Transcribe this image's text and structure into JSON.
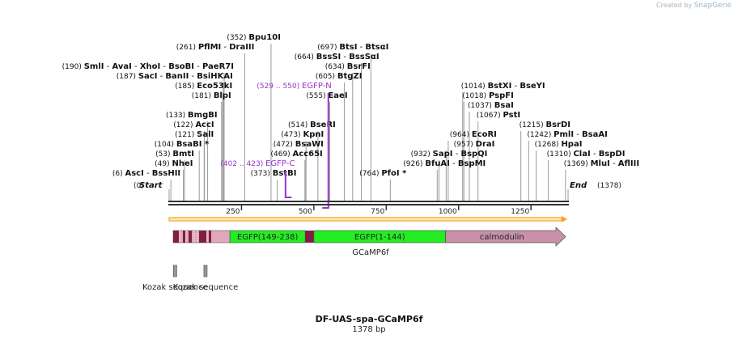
{
  "credit": {
    "prefix": "Created by",
    "brand": "SnapGene"
  },
  "title": "DF-UAS-spa-GCaMP6f",
  "length_label": "1378 bp",
  "total_bp": 1378,
  "ruler_ticks": [
    "250",
    "500",
    "750",
    "1000",
    "1250"
  ],
  "ruler_positions": [
    250,
    500,
    750,
    1000,
    1250
  ],
  "end_labels": {
    "start": "Start",
    "start_pos": "(0)",
    "end": "End",
    "end_pos": "(1378)"
  },
  "sites": [
    {
      "row": 0,
      "pos": 6,
      "posText": "(6)",
      "names": [
        "AscI",
        "BssHII"
      ]
    },
    {
      "row": 1,
      "pos": 49,
      "posText": "(49)",
      "names": [
        "NheI"
      ]
    },
    {
      "row": 2,
      "pos": 53,
      "posText": "(53)",
      "names": [
        "BmtI"
      ]
    },
    {
      "row": 3,
      "pos": 104,
      "posText": "(104)",
      "names": [
        "BsaBI *"
      ]
    },
    {
      "row": 4,
      "pos": 121,
      "posText": "(121)",
      "names": [
        "SalI"
      ]
    },
    {
      "row": 5,
      "pos": 122,
      "posText": "(122)",
      "names": [
        "AccI"
      ]
    },
    {
      "row": 6,
      "pos": 133,
      "posText": "(133)",
      "names": [
        "BmgBI"
      ]
    },
    {
      "row": 8,
      "pos": 181,
      "posText": "(181)",
      "names": [
        "BlpI"
      ]
    },
    {
      "row": 9,
      "pos": 185,
      "posText": "(185)",
      "names": [
        "Eco53kI"
      ]
    },
    {
      "row": 10,
      "pos": 187,
      "posText": "(187)",
      "names": [
        "SacI",
        "BanII",
        "BsiHKAI"
      ]
    },
    {
      "row": 11,
      "pos": 190,
      "posText": "(190)",
      "names": [
        "SmlI",
        "AvaI",
        "XhoI",
        "BsoBI",
        "PaeR7I"
      ]
    },
    {
      "row": 13,
      "pos": 261,
      "posText": "(261)",
      "names": [
        "PflMI",
        "DraIII"
      ]
    },
    {
      "row": 14,
      "pos": 352,
      "posText": "(352)",
      "names": [
        "Bpu10I"
      ]
    },
    {
      "row": 0,
      "pos": 373,
      "posText": "(373)",
      "names": [
        "BstBI"
      ]
    },
    {
      "row": 2,
      "pos": 469,
      "posText": "(469)",
      "names": [
        "Acc65I"
      ]
    },
    {
      "row": 3,
      "pos": 472,
      "posText": "(472)",
      "names": [
        "BsaWI"
      ]
    },
    {
      "row": 4,
      "pos": 473,
      "posText": "(473)",
      "names": [
        "KpnI"
      ]
    },
    {
      "row": 5,
      "pos": 514,
      "posText": "(514)",
      "names": [
        "BseRI"
      ]
    },
    {
      "row": 8,
      "pos": 555,
      "posText": "(555)",
      "names": [
        "EaeI"
      ]
    },
    {
      "row": 10,
      "pos": 605,
      "posText": "(605)",
      "names": [
        "BtgZI"
      ]
    },
    {
      "row": 11,
      "pos": 634,
      "posText": "(634)",
      "names": [
        "BsrFI"
      ]
    },
    {
      "row": 12,
      "pos": 664,
      "posText": "(664)",
      "names": [
        "BssSI",
        "BssSαI"
      ]
    },
    {
      "row": 13,
      "pos": 697,
      "posText": "(697)",
      "names": [
        "BtsI",
        "BtsαI"
      ]
    },
    {
      "row": 0,
      "pos": 764,
      "posText": "(764)",
      "names": [
        "PfoI *"
      ]
    },
    {
      "row": 1,
      "pos": 926,
      "posText": "(926)",
      "names": [
        "BfuAI",
        "BspMI"
      ]
    },
    {
      "row": 2,
      "pos": 932,
      "posText": "(932)",
      "names": [
        "SapI",
        "BspQI"
      ]
    },
    {
      "row": 3,
      "pos": 957,
      "posText": "(957)",
      "names": [
        "DraI"
      ]
    },
    {
      "row": 4,
      "pos": 964,
      "posText": "(964)",
      "names": [
        "EcoRI"
      ]
    },
    {
      "row": 6,
      "pos": 1067,
      "posText": "(1067)",
      "names": [
        "PstI"
      ]
    },
    {
      "row": 7,
      "pos": 1037,
      "posText": "(1037)",
      "names": [
        "BsaI"
      ]
    },
    {
      "row": 8,
      "pos": 1018,
      "posText": "(1018)",
      "names": [
        "PspFI"
      ]
    },
    {
      "row": 9,
      "pos": 1014,
      "posText": "(1014)",
      "names": [
        "BstXI",
        "BseYI"
      ]
    },
    {
      "row": 1,
      "pos": 1369,
      "posText": "(1369)",
      "names": [
        "MluI",
        "AflIII"
      ]
    },
    {
      "row": 2,
      "pos": 1310,
      "posText": "(1310)",
      "names": [
        "ClaI",
        "BspDI"
      ]
    },
    {
      "row": 3,
      "pos": 1268,
      "posText": "(1268)",
      "names": [
        "HpaI"
      ]
    },
    {
      "row": 4,
      "pos": 1242,
      "posText": "(1242)",
      "names": [
        "PmlI",
        "BsaAI"
      ]
    },
    {
      "row": 5,
      "pos": 1215,
      "posText": "(1215)",
      "names": [
        "BsrDI"
      ]
    }
  ],
  "primers": [
    {
      "label": "EGFP-C",
      "range": "(402 .. 423)",
      "start": 402,
      "end": 423,
      "row": 1
    },
    {
      "label": "EGFP-N",
      "range": "(529 .. 550)",
      "start": 529,
      "end": 550,
      "row": 9
    }
  ],
  "features": [
    {
      "label": "EGFP(149-238)",
      "start": 210,
      "end": 470,
      "color": "#22ee22"
    },
    {
      "label": "EGFP(1-144)",
      "start": 500,
      "end": 955,
      "color": "#22ee22"
    },
    {
      "label": "calmodulin",
      "start": 955,
      "end": 1378,
      "color": "#c890aa"
    }
  ],
  "construct_label": "GCaMP6f",
  "kozak": [
    {
      "label": "Kozak sequence",
      "pos": 15
    },
    {
      "label": "Kozak sequence",
      "pos": 120
    }
  ],
  "colors": {
    "primer": "#9933cc",
    "orf": "#f4a623",
    "backbone": "#333333",
    "tag_dark": "#801f3f",
    "tag_light": "#e0a8bc"
  }
}
